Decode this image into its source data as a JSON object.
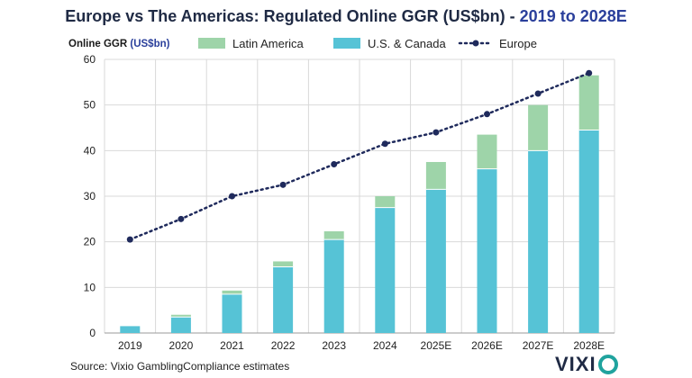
{
  "title": {
    "main": "Europe vs The Americas: Regulated Online GGR (US$bn) - ",
    "highlight": "2019 to 2028E"
  },
  "source": "Source: Vixio GamblingCompliance estimates",
  "logo_text": "VIXIO",
  "colors": {
    "latin_america": "#9ed4a9",
    "us_canada": "#56c3d6",
    "europe": "#1f2a5c",
    "grid": "#d9d9d9"
  },
  "chart_data": {
    "type": "bar",
    "stacked": true,
    "ylabel_main": "Online GGR",
    "ylabel_unit": "(US$bn)",
    "ylim": [
      0,
      60
    ],
    "yticks": [
      0,
      10,
      20,
      30,
      40,
      50,
      60
    ],
    "grid": true,
    "legend_position": "top",
    "categories": [
      "2019",
      "2020",
      "2021",
      "2022",
      "2023",
      "2024",
      "2025E",
      "2026E",
      "2027E",
      "2028E"
    ],
    "series": [
      {
        "name": "U.S. & Canada",
        "kind": "bar",
        "values": [
          1.5,
          3.5,
          8.5,
          14.5,
          20.5,
          27.5,
          31.5,
          36,
          40,
          44.5
        ]
      },
      {
        "name": "Latin America",
        "kind": "bar",
        "values": [
          0,
          0.5,
          0.8,
          1.2,
          1.8,
          2.5,
          6,
          7.5,
          10,
          12
        ]
      },
      {
        "name": "Europe",
        "kind": "line",
        "values": [
          20.5,
          25,
          30,
          32.5,
          37,
          41.5,
          44,
          48,
          52.5,
          57
        ]
      }
    ]
  }
}
